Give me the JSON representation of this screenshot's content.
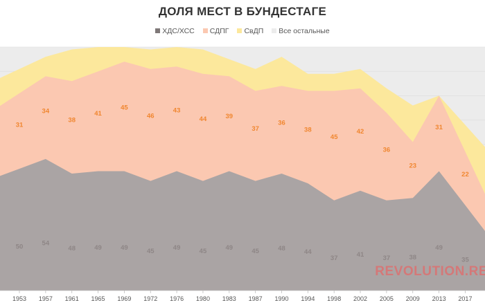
{
  "chart_data": {
    "type": "area",
    "stacked": true,
    "title": "ДОЛЯ МЕСТ В БУНДЕСТАГЕ",
    "categories": [
      "1953",
      "1957",
      "1961",
      "1965",
      "1969",
      "1972",
      "1976",
      "1980",
      "1983",
      "1987",
      "1990",
      "1994",
      "1998",
      "2002",
      "2005",
      "2009",
      "2013",
      "2017"
    ],
    "series": [
      {
        "name": "ХДС/ХСС",
        "color": "#aaa4a4",
        "label_color": "#8e8686",
        "values": [
          50,
          54,
          48,
          49,
          49,
          45,
          49,
          45,
          49,
          45,
          48,
          44,
          37,
          41,
          37,
          38,
          49,
          35
        ]
      },
      {
        "name": "СДПГ",
        "color": "#fbc8b1",
        "label_color": "#f0862f",
        "values": [
          31,
          34,
          38,
          41,
          45,
          46,
          43,
          44,
          39,
          37,
          36,
          38,
          45,
          42,
          36,
          23,
          31,
          22
        ]
      },
      {
        "name": "СвДП",
        "color": "#fce89c",
        "label_color": null,
        "values": [
          10,
          8,
          13,
          10,
          6,
          8,
          8,
          10,
          7,
          9,
          12,
          7,
          7,
          8,
          10,
          15,
          0,
          11
        ]
      },
      {
        "name": "Все остальные",
        "color": "#ececec",
        "label_color": null,
        "values": [
          9,
          4,
          1,
          0,
          0,
          1,
          0,
          1,
          5,
          9,
          4,
          11,
          11,
          9,
          17,
          24,
          20,
          32
        ]
      }
    ],
    "data_labels": [
      "ХДС/ХСС",
      "СДПГ"
    ],
    "ylim": [
      0,
      100
    ],
    "xlabel": "",
    "ylabel": "",
    "grid": true,
    "legend_position": "top"
  },
  "watermark": "REVOLUTION.RE"
}
